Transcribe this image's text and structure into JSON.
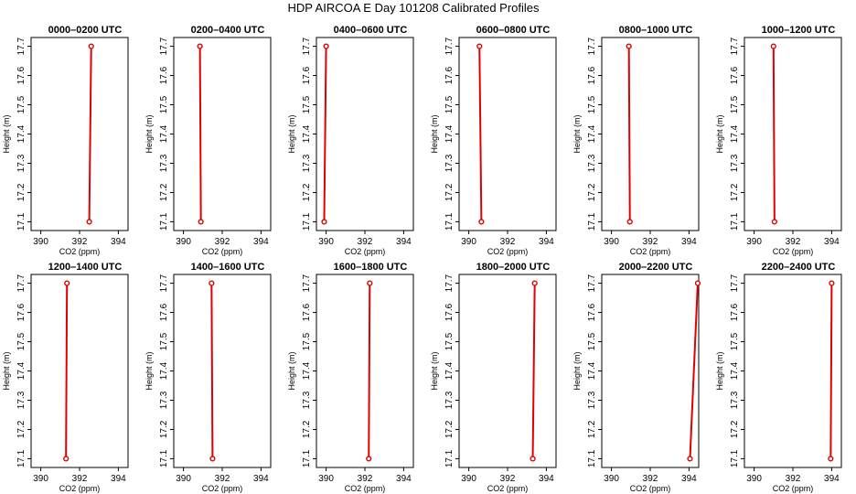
{
  "figure": {
    "title": "HDP AIRCOA E  Day 101208  Calibrated Profiles"
  },
  "chart_data": [
    {
      "type": "line",
      "title": "0000–0200 UTC",
      "xlabel": "CO2 (ppm)",
      "ylabel": "Height (m)",
      "xlim": [
        389.5,
        394.5
      ],
      "ylim": [
        17.07,
        17.73
      ],
      "x_ticks": [
        390,
        392,
        394
      ],
      "y_ticks": [
        17.1,
        17.2,
        17.3,
        17.4,
        17.5,
        17.6,
        17.7
      ],
      "series": [
        {
          "x": [
            392.5,
            392.6
          ],
          "y": [
            17.1,
            17.7
          ]
        }
      ]
    },
    {
      "type": "line",
      "title": "0200–0400 UTC",
      "xlabel": "CO2 (ppm)",
      "ylabel": "Height (m)",
      "xlim": [
        389.5,
        394.5
      ],
      "ylim": [
        17.07,
        17.73
      ],
      "x_ticks": [
        390,
        392,
        394
      ],
      "y_ticks": [
        17.1,
        17.2,
        17.3,
        17.4,
        17.5,
        17.6,
        17.7
      ],
      "series": [
        {
          "x": [
            390.9,
            390.85
          ],
          "y": [
            17.1,
            17.7
          ]
        }
      ]
    },
    {
      "type": "line",
      "title": "0400–0600 UTC",
      "xlabel": "CO2 (ppm)",
      "ylabel": "Height (m)",
      "xlim": [
        389.5,
        394.5
      ],
      "ylim": [
        17.07,
        17.73
      ],
      "x_ticks": [
        390,
        392,
        394
      ],
      "y_ticks": [
        17.1,
        17.2,
        17.3,
        17.4,
        17.5,
        17.6,
        17.7
      ],
      "series": [
        {
          "x": [
            389.9,
            390.0
          ],
          "y": [
            17.1,
            17.7
          ]
        }
      ]
    },
    {
      "type": "line",
      "title": "0600–0800 UTC",
      "xlabel": "CO2 (ppm)",
      "ylabel": "Height (m)",
      "xlim": [
        389.5,
        394.5
      ],
      "ylim": [
        17.07,
        17.73
      ],
      "x_ticks": [
        390,
        392,
        394
      ],
      "y_ticks": [
        17.1,
        17.2,
        17.3,
        17.4,
        17.5,
        17.6,
        17.7
      ],
      "series": [
        {
          "x": [
            390.65,
            390.55
          ],
          "y": [
            17.1,
            17.7
          ]
        }
      ]
    },
    {
      "type": "line",
      "title": "0800–1000 UTC",
      "xlabel": "CO2 (ppm)",
      "ylabel": "Height (m)",
      "xlim": [
        389.5,
        394.5
      ],
      "ylim": [
        17.07,
        17.73
      ],
      "x_ticks": [
        390,
        392,
        394
      ],
      "y_ticks": [
        17.1,
        17.2,
        17.3,
        17.4,
        17.5,
        17.6,
        17.7
      ],
      "series": [
        {
          "x": [
            390.95,
            390.9
          ],
          "y": [
            17.1,
            17.7
          ]
        }
      ]
    },
    {
      "type": "line",
      "title": "1000–1200 UTC",
      "xlabel": "CO2 (ppm)",
      "ylabel": "Height (m)",
      "xlim": [
        389.5,
        394.5
      ],
      "ylim": [
        17.07,
        17.73
      ],
      "x_ticks": [
        390,
        392,
        394
      ],
      "y_ticks": [
        17.1,
        17.2,
        17.3,
        17.4,
        17.5,
        17.6,
        17.7
      ],
      "series": [
        {
          "x": [
            391.05,
            391.0
          ],
          "y": [
            17.1,
            17.7
          ]
        }
      ]
    },
    {
      "type": "line",
      "title": "1200–1400 UTC",
      "xlabel": "CO2 (ppm)",
      "ylabel": "Height (m)",
      "xlim": [
        389.5,
        394.5
      ],
      "ylim": [
        17.07,
        17.73
      ],
      "x_ticks": [
        390,
        392,
        394
      ],
      "y_ticks": [
        17.1,
        17.2,
        17.3,
        17.4,
        17.5,
        17.6,
        17.7
      ],
      "series": [
        {
          "x": [
            391.3,
            391.35
          ],
          "y": [
            17.1,
            17.7
          ]
        }
      ]
    },
    {
      "type": "line",
      "title": "1400–1600 UTC",
      "xlabel": "CO2 (ppm)",
      "ylabel": "Height (m)",
      "xlim": [
        389.5,
        394.5
      ],
      "ylim": [
        17.07,
        17.73
      ],
      "x_ticks": [
        390,
        392,
        394
      ],
      "y_ticks": [
        17.1,
        17.2,
        17.3,
        17.4,
        17.5,
        17.6,
        17.7
      ],
      "series": [
        {
          "x": [
            391.5,
            391.45
          ],
          "y": [
            17.1,
            17.7
          ]
        }
      ]
    },
    {
      "type": "line",
      "title": "1600–1800 UTC",
      "xlabel": "CO2 (ppm)",
      "ylabel": "Height (m)",
      "xlim": [
        389.5,
        394.5
      ],
      "ylim": [
        17.07,
        17.73
      ],
      "x_ticks": [
        390,
        392,
        394
      ],
      "y_ticks": [
        17.1,
        17.2,
        17.3,
        17.4,
        17.5,
        17.6,
        17.7
      ],
      "series": [
        {
          "x": [
            392.2,
            392.25
          ],
          "y": [
            17.1,
            17.7
          ]
        }
      ]
    },
    {
      "type": "line",
      "title": "1800–2000 UTC",
      "xlabel": "CO2 (ppm)",
      "ylabel": "Height (m)",
      "xlim": [
        389.5,
        394.5
      ],
      "ylim": [
        17.07,
        17.73
      ],
      "x_ticks": [
        390,
        392,
        394
      ],
      "y_ticks": [
        17.1,
        17.2,
        17.3,
        17.4,
        17.5,
        17.6,
        17.7
      ],
      "series": [
        {
          "x": [
            393.3,
            393.4
          ],
          "y": [
            17.1,
            17.7
          ]
        }
      ]
    },
    {
      "type": "line",
      "title": "2000–2200 UTC",
      "xlabel": "CO2 (ppm)",
      "ylabel": "Height (m)",
      "xlim": [
        389.5,
        394.5
      ],
      "ylim": [
        17.07,
        17.73
      ],
      "x_ticks": [
        390,
        392,
        394
      ],
      "y_ticks": [
        17.1,
        17.2,
        17.3,
        17.4,
        17.5,
        17.6,
        17.7
      ],
      "series": [
        {
          "x": [
            394.05,
            394.45
          ],
          "y": [
            17.1,
            17.7
          ]
        }
      ]
    },
    {
      "type": "line",
      "title": "2200–2400 UTC",
      "xlabel": "CO2 (ppm)",
      "ylabel": "Height (m)",
      "xlim": [
        389.5,
        394.5
      ],
      "ylim": [
        17.07,
        17.73
      ],
      "x_ticks": [
        390,
        392,
        394
      ],
      "y_ticks": [
        17.1,
        17.2,
        17.3,
        17.4,
        17.5,
        17.6,
        17.7
      ],
      "series": [
        {
          "x": [
            393.95,
            394.0
          ],
          "y": [
            17.1,
            17.7
          ]
        }
      ]
    }
  ]
}
